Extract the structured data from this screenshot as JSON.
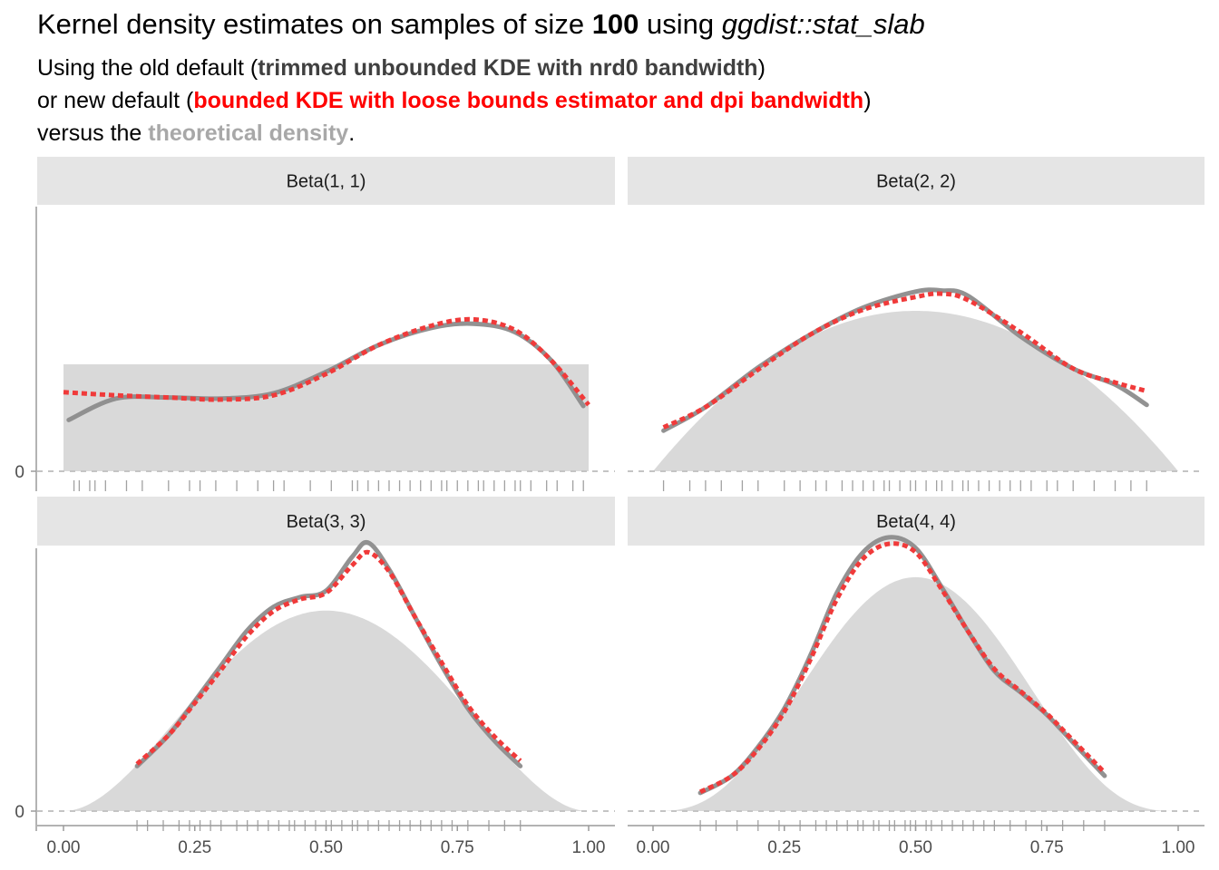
{
  "title": {
    "pre": "Kernel density estimates on samples of size ",
    "bold": "100",
    "mid": " using ",
    "italic": "ggdist::stat_slab"
  },
  "subtitle": {
    "line1_pre": "Using the old default (",
    "line1_key": "trimmed unbounded KDE with nrd0 bandwidth",
    "line1_post": ")",
    "line2_pre": "or new default (",
    "line2_key": "bounded KDE with loose bounds estimator and dpi bandwidth",
    "line2_post": ")",
    "line3_pre": "versus the ",
    "line3_key": "theoretical density",
    "line3_post": "."
  },
  "colors": {
    "old_default": "#8c8c8c",
    "new_default": "#f03a3a",
    "theoretical": "#d9d9d9",
    "strip_bg": "#e5e5e5",
    "rug": "#555555"
  },
  "chart_data": {
    "type": "area",
    "facets": [
      "Beta(1, 1)",
      "Beta(2, 2)",
      "Beta(3, 3)",
      "Beta(4, 4)"
    ],
    "xlim": [
      0,
      1
    ],
    "x_ticks": [
      0,
      0.25,
      0.5,
      0.75,
      1
    ],
    "x_tick_labels": [
      "0.00",
      "0.25",
      "0.50",
      "0.75",
      "1.00"
    ],
    "y_tick_labels": [
      "0"
    ],
    "xlabel": "",
    "ylabel": "",
    "legend": "none",
    "grid": false,
    "panels": [
      {
        "facet": "Beta(1, 1)",
        "alpha": 1,
        "beta": 1,
        "old_default": {
          "x": [
            0.01,
            0.1,
            0.2,
            0.3,
            0.4,
            0.5,
            0.6,
            0.7,
            0.78,
            0.86,
            0.93,
            0.99
          ],
          "y": [
            0.48,
            0.68,
            0.69,
            0.68,
            0.73,
            0.93,
            1.18,
            1.34,
            1.38,
            1.3,
            1.03,
            0.61
          ]
        },
        "new_default": {
          "x": [
            0.0,
            0.1,
            0.2,
            0.3,
            0.4,
            0.5,
            0.6,
            0.7,
            0.78,
            0.86,
            0.93,
            1.0
          ],
          "y": [
            0.74,
            0.71,
            0.69,
            0.67,
            0.71,
            0.91,
            1.18,
            1.36,
            1.42,
            1.32,
            1.03,
            0.62
          ]
        },
        "rug_x": [
          0.02,
          0.03,
          0.05,
          0.06,
          0.08,
          0.12,
          0.15,
          0.2,
          0.24,
          0.26,
          0.29,
          0.33,
          0.37,
          0.4,
          0.42,
          0.47,
          0.51,
          0.55,
          0.56,
          0.58,
          0.6,
          0.62,
          0.64,
          0.66,
          0.68,
          0.7,
          0.72,
          0.73,
          0.75,
          0.77,
          0.79,
          0.8,
          0.82,
          0.84,
          0.86,
          0.87,
          0.89,
          0.92,
          0.94,
          0.97,
          0.99
        ]
      },
      {
        "facet": "Beta(2, 2)",
        "alpha": 2,
        "beta": 2,
        "old_default": {
          "x": [
            0.02,
            0.1,
            0.2,
            0.3,
            0.4,
            0.5,
            0.55,
            0.6,
            0.7,
            0.8,
            0.88,
            0.94
          ],
          "y": [
            0.38,
            0.6,
            0.97,
            1.28,
            1.53,
            1.68,
            1.69,
            1.64,
            1.26,
            0.96,
            0.81,
            0.62
          ]
        },
        "new_default": {
          "x": [
            0.02,
            0.1,
            0.2,
            0.3,
            0.4,
            0.5,
            0.55,
            0.6,
            0.7,
            0.8,
            0.88,
            0.94
          ],
          "y": [
            0.41,
            0.6,
            0.95,
            1.28,
            1.51,
            1.63,
            1.66,
            1.6,
            1.3,
            0.96,
            0.83,
            0.75
          ]
        },
        "rug_x": [
          0.02,
          0.07,
          0.1,
          0.13,
          0.17,
          0.2,
          0.25,
          0.28,
          0.31,
          0.33,
          0.36,
          0.38,
          0.4,
          0.42,
          0.44,
          0.45,
          0.47,
          0.49,
          0.5,
          0.52,
          0.54,
          0.55,
          0.57,
          0.59,
          0.6,
          0.62,
          0.64,
          0.66,
          0.68,
          0.7,
          0.72,
          0.75,
          0.77,
          0.8,
          0.84,
          0.88,
          0.91,
          0.94
        ]
      },
      {
        "facet": "Beta(3, 3)",
        "alpha": 3,
        "beta": 3,
        "old_default": {
          "x": [
            0.14,
            0.2,
            0.25,
            0.3,
            0.35,
            0.4,
            0.45,
            0.5,
            0.55,
            0.58,
            0.62,
            0.67,
            0.72,
            0.77,
            0.82,
            0.87
          ],
          "y": [
            0.42,
            0.71,
            1.03,
            1.36,
            1.69,
            1.91,
            2.0,
            2.06,
            2.38,
            2.51,
            2.26,
            1.81,
            1.36,
            0.96,
            0.66,
            0.42
          ]
        },
        "new_default": {
          "x": [
            0.14,
            0.2,
            0.25,
            0.3,
            0.35,
            0.4,
            0.45,
            0.5,
            0.55,
            0.58,
            0.62,
            0.67,
            0.72,
            0.77,
            0.82,
            0.87
          ],
          "y": [
            0.44,
            0.71,
            1.01,
            1.32,
            1.64,
            1.87,
            1.98,
            2.04,
            2.3,
            2.42,
            2.24,
            1.81,
            1.39,
            0.99,
            0.7,
            0.47
          ]
        },
        "rug_x": [
          0.14,
          0.16,
          0.19,
          0.22,
          0.24,
          0.26,
          0.28,
          0.3,
          0.33,
          0.35,
          0.37,
          0.39,
          0.41,
          0.43,
          0.44,
          0.46,
          0.48,
          0.5,
          0.51,
          0.53,
          0.55,
          0.56,
          0.58,
          0.6,
          0.62,
          0.64,
          0.66,
          0.68,
          0.7,
          0.72,
          0.74,
          0.77,
          0.81,
          0.84,
          0.87
        ]
      },
      {
        "facet": "Beta(4, 4)",
        "alpha": 4,
        "beta": 4,
        "old_default": {
          "x": [
            0.09,
            0.15,
            0.2,
            0.25,
            0.3,
            0.35,
            0.4,
            0.45,
            0.5,
            0.55,
            0.6,
            0.65,
            0.7,
            0.75,
            0.8,
            0.86
          ],
          "y": [
            0.17,
            0.33,
            0.6,
            0.96,
            1.46,
            2.04,
            2.42,
            2.56,
            2.46,
            2.09,
            1.68,
            1.31,
            1.11,
            0.9,
            0.64,
            0.33
          ]
        },
        "new_default": {
          "x": [
            0.09,
            0.15,
            0.2,
            0.25,
            0.3,
            0.35,
            0.4,
            0.45,
            0.5,
            0.55,
            0.6,
            0.65,
            0.7,
            0.75,
            0.8,
            0.86
          ],
          "y": [
            0.18,
            0.33,
            0.58,
            0.93,
            1.42,
            1.98,
            2.36,
            2.5,
            2.42,
            2.07,
            1.68,
            1.33,
            1.12,
            0.91,
            0.66,
            0.36
          ]
        },
        "rug_x": [
          0.09,
          0.12,
          0.16,
          0.2,
          0.24,
          0.28,
          0.31,
          0.33,
          0.35,
          0.37,
          0.39,
          0.4,
          0.42,
          0.43,
          0.45,
          0.46,
          0.48,
          0.49,
          0.5,
          0.52,
          0.53,
          0.55,
          0.57,
          0.59,
          0.61,
          0.63,
          0.65,
          0.68,
          0.71,
          0.74,
          0.78,
          0.82,
          0.86
        ]
      }
    ]
  }
}
